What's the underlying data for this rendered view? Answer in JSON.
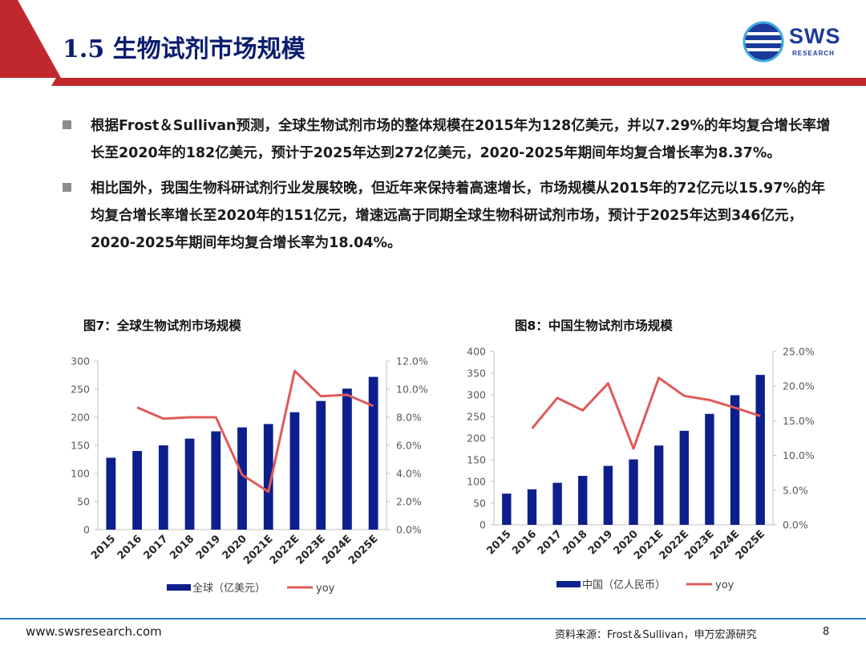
{
  "header": {
    "title": "1.5 生物试剂市场规模",
    "logo_text": "SWS",
    "logo_sub": "RESEARCH",
    "colors": {
      "accent_red": "#c0282d",
      "navy": "#0a1d6e",
      "bar_blue": "#0d1f8c",
      "line_red": "#e05a5a"
    }
  },
  "bullets": [
    "根据Frost＆Sullivan预测，全球生物试剂市场的整体规模在2015年为128亿美元，并以7.29%的年均复合增长率增长至2020年的182亿美元，预计于2025年达到272亿美元，2020-2025年期间年均复合增长率为8.37%。",
    "相比国外，我国生物科研试剂行业发展较晚，但近年来保持着高速增长，市场规模从2015年的72亿元以15.97%的年均复合增长率增长至2020年的151亿元，增速远高于同期全球生物科研试剂市场，预计于2025年达到346亿元，2020-2025年期间年均复合增长率为18.04%。"
  ],
  "chart_data": [
    {
      "type": "bar",
      "title": "图7：全球生物试剂市场规模",
      "categories": [
        "2015",
        "2016",
        "2017",
        "2018",
        "2019",
        "2020",
        "2021E",
        "2022E",
        "2023E",
        "2024E",
        "2025E"
      ],
      "series": [
        {
          "name": "全球（亿美元）",
          "type": "bar",
          "axis": "left",
          "values": [
            128,
            140,
            150,
            162,
            175,
            182,
            188,
            209,
            229,
            251,
            272
          ]
        },
        {
          "name": "yoy",
          "type": "line",
          "axis": "right",
          "values": [
            null,
            8.7,
            7.9,
            8.0,
            8.0,
            3.9,
            2.7,
            11.3,
            9.5,
            9.6,
            8.8
          ]
        }
      ],
      "ylim_left": [
        0,
        300
      ],
      "ylim_right": [
        0,
        12
      ],
      "left_ticks": [
        "0",
        "50",
        "100",
        "150",
        "200",
        "250",
        "300"
      ],
      "right_ticks": [
        "0.0%",
        "2.0%",
        "4.0%",
        "6.0%",
        "8.0%",
        "10.0%",
        "12.0%"
      ],
      "legend_position": "bottom",
      "grid": false
    },
    {
      "type": "bar",
      "title": "图8：中国生物试剂市场规模",
      "categories": [
        "2015",
        "2016",
        "2017",
        "2018",
        "2019",
        "2020",
        "2021E",
        "2022E",
        "2023E",
        "2024E",
        "2025E"
      ],
      "series": [
        {
          "name": "中国（亿人民币）",
          "type": "bar",
          "axis": "left",
          "values": [
            72,
            82,
            97,
            113,
            136,
            151,
            183,
            217,
            256,
            299,
            346
          ]
        },
        {
          "name": "yoy",
          "type": "line",
          "axis": "right",
          "values": [
            null,
            13.9,
            18.3,
            16.5,
            20.4,
            11.0,
            21.2,
            18.6,
            18.0,
            16.9,
            15.7
          ]
        }
      ],
      "ylim_left": [
        0,
        400
      ],
      "ylim_right": [
        0,
        25
      ],
      "left_ticks": [
        "0",
        "50",
        "100",
        "150",
        "200",
        "250",
        "300",
        "350",
        "400"
      ],
      "right_ticks": [
        "0.0%",
        "5.0%",
        "10.0%",
        "15.0%",
        "20.0%",
        "25.0%"
      ],
      "legend_position": "bottom",
      "grid": false
    }
  ],
  "footer": {
    "url": "www.swsresearch.com",
    "source": "资料来源：Frost＆Sullivan，申万宏源研究",
    "page": "8"
  }
}
